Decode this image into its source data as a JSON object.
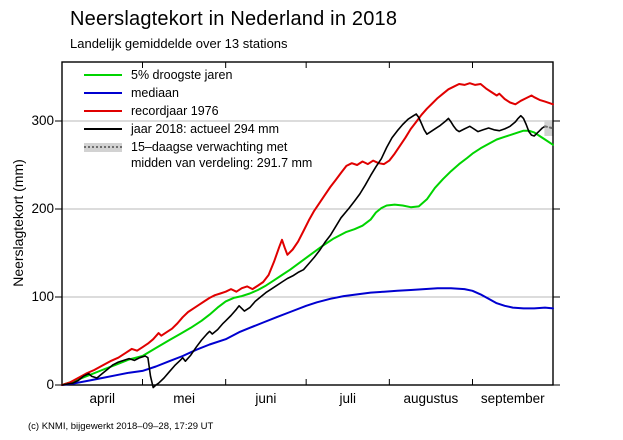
{
  "chart_data": {
    "type": "line",
    "title": "Neerslagtekort in Nederland in 2018",
    "subtitle": "Landelijk gemiddelde over 13 stations",
    "footer": "(c) KNMI, bijgewerkt 2018–09–28, 17:29 UT",
    "ylabel": "Neerslagtekort (mm)",
    "yticks": [
      0,
      100,
      200,
      300
    ],
    "ylim": [
      0,
      367
    ],
    "grid": "horizontal gridlines at 100, 200, 300",
    "legend_position": "top-left",
    "x_axis": {
      "unit": "days since 1 april 2018",
      "month_labels": [
        "april",
        "mei",
        "juni",
        "juli",
        "augustus",
        "september"
      ],
      "month_boundaries_days": [
        0,
        30,
        61,
        91,
        122,
        153,
        183
      ]
    },
    "legend": [
      {
        "type": "line",
        "color": "#00d400",
        "label": "5% droogste jaren"
      },
      {
        "type": "line",
        "color": "#0000d0",
        "label": "mediaan"
      },
      {
        "type": "line",
        "color": "#e00000",
        "label": "recordjaar 1976"
      },
      {
        "type": "line",
        "color": "#000000",
        "label": "jaar 2018: actueel 294 mm"
      },
      {
        "type": "band-dotted",
        "color": "#6e6e6e",
        "band_color": "#d2d2d2",
        "label": "15–daagse verwachting met",
        "label2": "midden van verdeling: 291.7 mm"
      }
    ],
    "series": [
      {
        "name": "5% droogste jaren",
        "color": "#00d400",
        "style": "solid",
        "points": [
          [
            0,
            0
          ],
          [
            5,
            5
          ],
          [
            10,
            11
          ],
          [
            15,
            17
          ],
          [
            20,
            23
          ],
          [
            25,
            29
          ],
          [
            30,
            33
          ],
          [
            35,
            42
          ],
          [
            40,
            51
          ],
          [
            44,
            58
          ],
          [
            48,
            65
          ],
          [
            52,
            73
          ],
          [
            55,
            80
          ],
          [
            58,
            88
          ],
          [
            61,
            95
          ],
          [
            64,
            99
          ],
          [
            67,
            101
          ],
          [
            70,
            104
          ],
          [
            73,
            108
          ],
          [
            76,
            113
          ],
          [
            79,
            119
          ],
          [
            82,
            125
          ],
          [
            85,
            131
          ],
          [
            89,
            140
          ],
          [
            93,
            149
          ],
          [
            97,
            158
          ],
          [
            101,
            166
          ],
          [
            106,
            174
          ],
          [
            109,
            177
          ],
          [
            112,
            181
          ],
          [
            115,
            188
          ],
          [
            117,
            196
          ],
          [
            119,
            201
          ],
          [
            121,
            204
          ],
          [
            124,
            205
          ],
          [
            127,
            204
          ],
          [
            130,
            202
          ],
          [
            133,
            203
          ],
          [
            136,
            211
          ],
          [
            139,
            224
          ],
          [
            142,
            234
          ],
          [
            145,
            243
          ],
          [
            148,
            251
          ],
          [
            151,
            258
          ],
          [
            153,
            263
          ],
          [
            156,
            269
          ],
          [
            159,
            274
          ],
          [
            162,
            279
          ],
          [
            165,
            282
          ],
          [
            168,
            285
          ],
          [
            170,
            287
          ],
          [
            172,
            289
          ],
          [
            174,
            289
          ],
          [
            176,
            287
          ],
          [
            178,
            283
          ],
          [
            180,
            279
          ],
          [
            183,
            273
          ]
        ]
      },
      {
        "name": "mediaan",
        "color": "#0000d0",
        "style": "solid",
        "points": [
          [
            0,
            0
          ],
          [
            5,
            2
          ],
          [
            10,
            5
          ],
          [
            15,
            8
          ],
          [
            20,
            11
          ],
          [
            25,
            14
          ],
          [
            30,
            16
          ],
          [
            35,
            21
          ],
          [
            40,
            27
          ],
          [
            45,
            33
          ],
          [
            50,
            40
          ],
          [
            55,
            46
          ],
          [
            61,
            52
          ],
          [
            66,
            60
          ],
          [
            70,
            65
          ],
          [
            75,
            71
          ],
          [
            80,
            77
          ],
          [
            85,
            83
          ],
          [
            91,
            90
          ],
          [
            95,
            94
          ],
          [
            100,
            98
          ],
          [
            105,
            101
          ],
          [
            110,
            103
          ],
          [
            115,
            105
          ],
          [
            120,
            106
          ],
          [
            125,
            107
          ],
          [
            130,
            108
          ],
          [
            135,
            109
          ],
          [
            140,
            110
          ],
          [
            145,
            110
          ],
          [
            150,
            109
          ],
          [
            153,
            107
          ],
          [
            156,
            103
          ],
          [
            159,
            98
          ],
          [
            162,
            93
          ],
          [
            165,
            90
          ],
          [
            168,
            88
          ],
          [
            172,
            87
          ],
          [
            176,
            87
          ],
          [
            180,
            88
          ],
          [
            183,
            87
          ]
        ]
      },
      {
        "name": "recordjaar 1976",
        "color": "#e00000",
        "style": "solid",
        "points": [
          [
            0,
            0
          ],
          [
            3,
            3
          ],
          [
            6,
            8
          ],
          [
            9,
            13
          ],
          [
            12,
            17
          ],
          [
            15,
            22
          ],
          [
            18,
            27
          ],
          [
            21,
            31
          ],
          [
            24,
            37
          ],
          [
            26,
            41
          ],
          [
            28,
            39
          ],
          [
            30,
            43
          ],
          [
            32,
            47
          ],
          [
            34,
            52
          ],
          [
            36,
            59
          ],
          [
            37,
            56
          ],
          [
            39,
            60
          ],
          [
            41,
            64
          ],
          [
            43,
            70
          ],
          [
            45,
            77
          ],
          [
            47,
            83
          ],
          [
            49,
            87
          ],
          [
            51,
            91
          ],
          [
            53,
            95
          ],
          [
            55,
            99
          ],
          [
            57,
            102
          ],
          [
            59,
            104
          ],
          [
            61,
            106
          ],
          [
            63,
            109
          ],
          [
            65,
            106
          ],
          [
            67,
            110
          ],
          [
            69,
            112
          ],
          [
            71,
            109
          ],
          [
            73,
            113
          ],
          [
            75,
            117
          ],
          [
            77,
            125
          ],
          [
            79,
            140
          ],
          [
            81,
            157
          ],
          [
            82,
            165
          ],
          [
            83,
            156
          ],
          [
            84,
            148
          ],
          [
            86,
            154
          ],
          [
            88,
            163
          ],
          [
            90,
            175
          ],
          [
            92,
            187
          ],
          [
            94,
            198
          ],
          [
            96,
            207
          ],
          [
            98,
            216
          ],
          [
            100,
            225
          ],
          [
            102,
            233
          ],
          [
            104,
            241
          ],
          [
            106,
            249
          ],
          [
            108,
            252
          ],
          [
            110,
            250
          ],
          [
            112,
            254
          ],
          [
            114,
            251
          ],
          [
            116,
            255
          ],
          [
            118,
            252
          ],
          [
            120,
            251
          ],
          [
            122,
            255
          ],
          [
            124,
            263
          ],
          [
            126,
            272
          ],
          [
            128,
            281
          ],
          [
            130,
            291
          ],
          [
            132,
            299
          ],
          [
            134,
            307
          ],
          [
            136,
            314
          ],
          [
            138,
            320
          ],
          [
            140,
            326
          ],
          [
            142,
            331
          ],
          [
            144,
            336
          ],
          [
            146,
            339
          ],
          [
            148,
            342
          ],
          [
            150,
            341
          ],
          [
            152,
            343
          ],
          [
            154,
            341
          ],
          [
            156,
            342
          ],
          [
            158,
            337
          ],
          [
            160,
            333
          ],
          [
            162,
            329
          ],
          [
            163,
            331
          ],
          [
            165,
            325
          ],
          [
            167,
            321
          ],
          [
            169,
            319
          ],
          [
            171,
            323
          ],
          [
            173,
            326
          ],
          [
            175,
            329
          ],
          [
            176,
            327
          ],
          [
            178,
            324
          ],
          [
            180,
            322
          ],
          [
            183,
            319
          ]
        ]
      },
      {
        "name": "jaar 2018: actueel 294 mm",
        "color": "#000000",
        "style": "solid",
        "points": [
          [
            0,
            0
          ],
          [
            2,
            1
          ],
          [
            4,
            2
          ],
          [
            6,
            5
          ],
          [
            8,
            10
          ],
          [
            10,
            13
          ],
          [
            11,
            10
          ],
          [
            13,
            8
          ],
          [
            15,
            13
          ],
          [
            17,
            18
          ],
          [
            19,
            23
          ],
          [
            21,
            26
          ],
          [
            23,
            28
          ],
          [
            25,
            30
          ],
          [
            27,
            28
          ],
          [
            29,
            31
          ],
          [
            31,
            33
          ],
          [
            32,
            31
          ],
          [
            33,
            10
          ],
          [
            34,
            -3
          ],
          [
            35,
            0
          ],
          [
            36,
            2
          ],
          [
            38,
            8
          ],
          [
            40,
            15
          ],
          [
            42,
            22
          ],
          [
            44,
            28
          ],
          [
            45,
            31
          ],
          [
            46,
            27
          ],
          [
            48,
            34
          ],
          [
            50,
            43
          ],
          [
            52,
            51
          ],
          [
            54,
            58
          ],
          [
            55,
            61
          ],
          [
            56,
            58
          ],
          [
            58,
            63
          ],
          [
            60,
            70
          ],
          [
            61,
            73
          ],
          [
            63,
            79
          ],
          [
            65,
            86
          ],
          [
            66,
            90
          ],
          [
            68,
            84
          ],
          [
            70,
            88
          ],
          [
            72,
            95
          ],
          [
            74,
            100
          ],
          [
            76,
            105
          ],
          [
            78,
            109
          ],
          [
            80,
            113
          ],
          [
            82,
            117
          ],
          [
            84,
            121
          ],
          [
            86,
            124
          ],
          [
            88,
            128
          ],
          [
            90,
            131
          ],
          [
            92,
            138
          ],
          [
            94,
            145
          ],
          [
            96,
            153
          ],
          [
            98,
            162
          ],
          [
            100,
            170
          ],
          [
            102,
            180
          ],
          [
            104,
            190
          ],
          [
            107,
            201
          ],
          [
            109,
            209
          ],
          [
            111,
            217
          ],
          [
            113,
            227
          ],
          [
            115,
            238
          ],
          [
            117,
            248
          ],
          [
            119,
            257
          ],
          [
            121,
            270
          ],
          [
            123,
            281
          ],
          [
            125,
            289
          ],
          [
            127,
            296
          ],
          [
            129,
            302
          ],
          [
            131,
            306
          ],
          [
            132,
            308
          ],
          [
            133,
            304
          ],
          [
            134,
            297
          ],
          [
            135,
            290
          ],
          [
            136,
            285
          ],
          [
            137,
            287
          ],
          [
            139,
            291
          ],
          [
            141,
            295
          ],
          [
            143,
            300
          ],
          [
            144,
            303
          ],
          [
            145,
            299
          ],
          [
            146,
            294
          ],
          [
            147,
            290
          ],
          [
            148,
            288
          ],
          [
            150,
            291
          ],
          [
            152,
            294
          ],
          [
            153,
            292
          ],
          [
            155,
            288
          ],
          [
            157,
            290
          ],
          [
            159,
            292
          ],
          [
            161,
            290
          ],
          [
            163,
            289
          ],
          [
            165,
            291
          ],
          [
            167,
            294
          ],
          [
            169,
            299
          ],
          [
            170,
            303
          ],
          [
            171,
            306
          ],
          [
            172,
            303
          ],
          [
            173,
            296
          ],
          [
            174,
            288
          ],
          [
            175,
            284
          ],
          [
            176,
            283
          ],
          [
            177,
            286
          ],
          [
            178,
            289
          ],
          [
            179,
            292
          ],
          [
            180,
            294
          ]
        ]
      },
      {
        "name": "15-daagse verwachting (midden van verdeling 291.7 mm)",
        "color": "#6e6e6e",
        "style": "dotted",
        "band": {
          "days": [
            179.8,
            183
          ],
          "mm": [
            283,
            301
          ],
          "color": "#d2d2d2"
        },
        "points": [
          [
            180,
            294
          ],
          [
            183,
            291.7
          ]
        ]
      }
    ]
  }
}
